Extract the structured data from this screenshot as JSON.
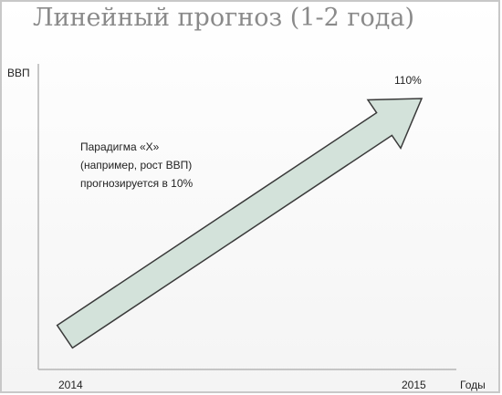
{
  "header": {
    "title": "Линейный прогноз (1-2 года)"
  },
  "axes": {
    "y_label": "ВВП",
    "x_label": "Годы",
    "start_label": "2014",
    "end_label": "2015"
  },
  "arrow": {
    "label": "110%"
  },
  "note": {
    "lines": [
      "Парадигма «Х»",
      "(например, рост ВВП)",
      "прогнозируется в 10%"
    ]
  }
}
